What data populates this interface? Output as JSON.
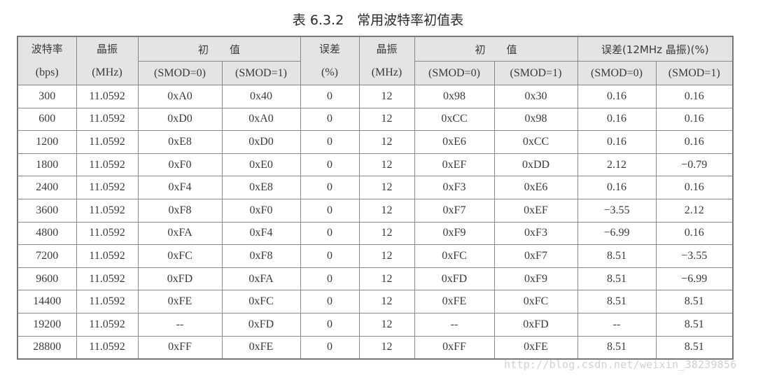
{
  "title": "表 6.3.2　常用波特率初值表",
  "headers": {
    "baud": "波特率",
    "baud_unit": "(bps)",
    "osc": "晶振",
    "osc_unit": "(MHz)",
    "init": "初　　值",
    "smod0": "(SMOD=0)",
    "smod1": "(SMOD=1)",
    "err": "误差",
    "err_unit": "(%)",
    "osc2": "晶振",
    "osc2_unit": "(MHz)",
    "init2": "初　　值",
    "err12": "误差(12MHz 晶振)(%)"
  },
  "rows": [
    [
      "300",
      "11.0592",
      "0xA0",
      "0x40",
      "0",
      "12",
      "0x98",
      "0x30",
      "0.16",
      "0.16"
    ],
    [
      "600",
      "11.0592",
      "0xD0",
      "0xA0",
      "0",
      "12",
      "0xCC",
      "0x98",
      "0.16",
      "0.16"
    ],
    [
      "1200",
      "11.0592",
      "0xE8",
      "0xD0",
      "0",
      "12",
      "0xE6",
      "0xCC",
      "0.16",
      "0.16"
    ],
    [
      "1800",
      "11.0592",
      "0xF0",
      "0xE0",
      "0",
      "12",
      "0xEF",
      "0xDD",
      "2.12",
      "−0.79"
    ],
    [
      "2400",
      "11.0592",
      "0xF4",
      "0xE8",
      "0",
      "12",
      "0xF3",
      "0xE6",
      "0.16",
      "0.16"
    ],
    [
      "3600",
      "11.0592",
      "0xF8",
      "0xF0",
      "0",
      "12",
      "0xF7",
      "0xEF",
      "−3.55",
      "2.12"
    ],
    [
      "4800",
      "11.0592",
      "0xFA",
      "0xF4",
      "0",
      "12",
      "0xF9",
      "0xF3",
      "−6.99",
      "0.16"
    ],
    [
      "7200",
      "11.0592",
      "0xFC",
      "0xF8",
      "0",
      "12",
      "0xFC",
      "0xF7",
      "8.51",
      "−3.55"
    ],
    [
      "9600",
      "11.0592",
      "0xFD",
      "0xFA",
      "0",
      "12",
      "0xFD",
      "0xF9",
      "8.51",
      "−6.99"
    ],
    [
      "14400",
      "11.0592",
      "0xFE",
      "0xFC",
      "0",
      "12",
      "0xFE",
      "0xFC",
      "8.51",
      "8.51"
    ],
    [
      "19200",
      "11.0592",
      "--",
      "0xFD",
      "0",
      "12",
      "--",
      "0xFD",
      "--",
      "8.51"
    ],
    [
      "28800",
      "11.0592",
      "0xFF",
      "0xFE",
      "0",
      "12",
      "0xFF",
      "0xFE",
      "8.51",
      "8.51"
    ]
  ],
  "watermark": "http://blog.csdn.net/weixin_38239856"
}
